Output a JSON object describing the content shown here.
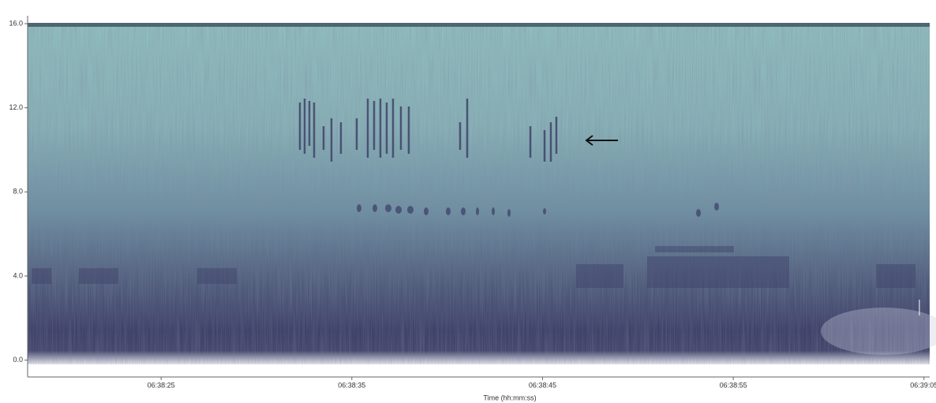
{
  "chart_data": {
    "type": "spectrogram",
    "xlabel": "Time (hh:mm:ss)",
    "xlim": [
      23898,
      23945.3
    ],
    "xticks": [
      {
        "value": 23905,
        "label": "06:38:25"
      },
      {
        "value": 23915,
        "label": "06:38:35"
      },
      {
        "value": 23925,
        "label": "06:38:45"
      },
      {
        "value": 23935,
        "label": "06:38:55"
      },
      {
        "value": 23945,
        "label": "06:39:05"
      }
    ],
    "ylim": [
      -0.8,
      16
    ],
    "yticks": [
      {
        "value": 0,
        "label": "0.0"
      },
      {
        "value": 4,
        "label": "4.0"
      },
      {
        "value": 8,
        "label": "8.0"
      },
      {
        "value": 12,
        "label": "12.0"
      },
      {
        "value": 16,
        "label": "16.0"
      }
    ]
  }
}
